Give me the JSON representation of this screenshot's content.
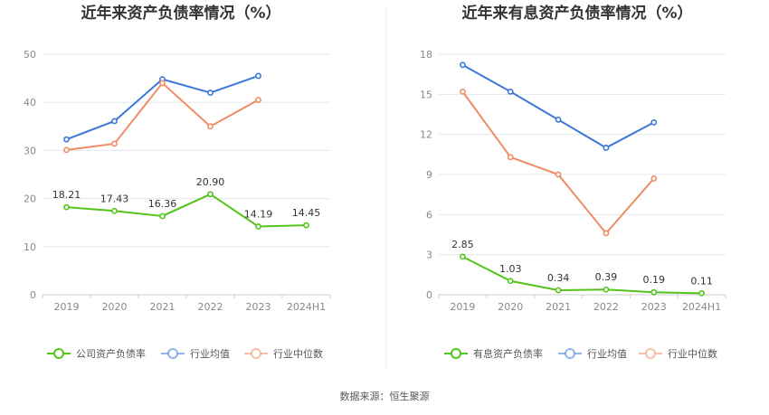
{
  "source_text": "数据来源：恒生聚源",
  "chart_data": [
    {
      "type": "line",
      "title": "近年来资产负债率情况（%）",
      "categories": [
        "2019",
        "2020",
        "2021",
        "2022",
        "2023",
        "2024H1"
      ],
      "ylim": [
        0,
        50
      ],
      "yticks": [
        "0",
        "10",
        "20",
        "30",
        "40",
        "50"
      ],
      "grid": true,
      "legend_position": "bottom",
      "series": [
        {
          "name": "公司资产负债率",
          "color": "#52c41a",
          "values": [
            18.21,
            17.43,
            16.36,
            20.9,
            14.19,
            14.45
          ],
          "labels": [
            "18.21",
            "17.43",
            "16.36",
            "20.90",
            "14.19",
            "14.45"
          ]
        },
        {
          "name": "行业均值",
          "color": "#3b78d8",
          "values": [
            32.3,
            36.1,
            44.8,
            42.0,
            45.5,
            null
          ]
        },
        {
          "name": "行业中位数",
          "color": "#f08c64",
          "values": [
            30.1,
            31.4,
            44.0,
            35.0,
            40.5,
            null
          ]
        }
      ]
    },
    {
      "type": "line",
      "title": "近年来有息资产负债率情况（%）",
      "categories": [
        "2019",
        "2020",
        "2021",
        "2022",
        "2023",
        "2024H1"
      ],
      "ylim": [
        0,
        18
      ],
      "yticks": [
        "0",
        "3",
        "6",
        "9",
        "12",
        "15",
        "18"
      ],
      "grid": true,
      "legend_position": "bottom",
      "series": [
        {
          "name": "有息资产负债率",
          "color": "#52c41a",
          "values": [
            2.85,
            1.03,
            0.34,
            0.39,
            0.19,
            0.11
          ],
          "labels": [
            "2.85",
            "1.03",
            "0.34",
            "0.39",
            "0.19",
            "0.11"
          ]
        },
        {
          "name": "行业均值",
          "color": "#3b78d8",
          "values": [
            17.2,
            15.2,
            13.1,
            11.0,
            12.9,
            null
          ]
        },
        {
          "name": "行业中位数",
          "color": "#f08c64",
          "values": [
            15.2,
            10.3,
            9.0,
            4.6,
            8.7,
            null
          ]
        }
      ]
    }
  ]
}
